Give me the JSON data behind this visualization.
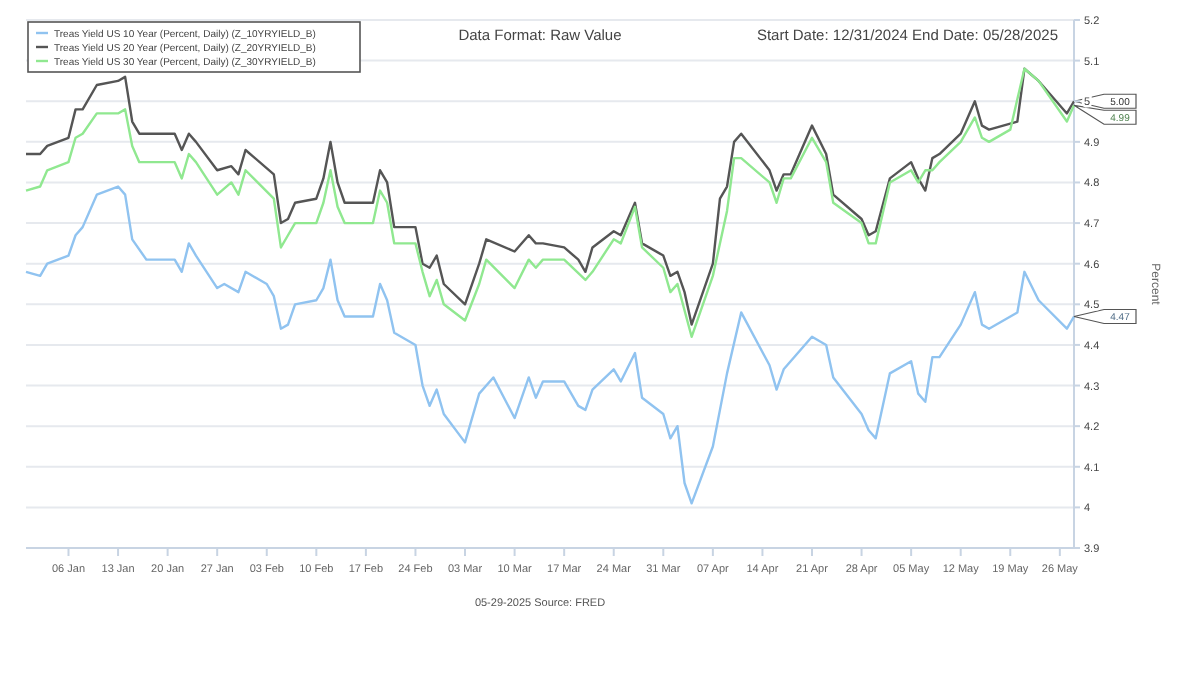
{
  "chart_data": {
    "type": "line",
    "title": "Data Format: Raw Value",
    "subtitle": "Start Date: 12/31/2024 End Date: 05/28/2025",
    "ylabel": "Percent",
    "annotations": [
      "05-29-2025 Source: FRED",
      {
        "text": "5.00",
        "x": "2025-05-28",
        "y": 5.0
      },
      {
        "text": "4.99",
        "x": "2025-05-28",
        "y": 4.99
      },
      {
        "text": "4.47",
        "x": "2025-05-28",
        "y": 4.47
      }
    ],
    "xlim": [
      "2024-12-31",
      "2025-05-28"
    ],
    "xticks": [
      {
        "value": "2025-01-06",
        "label": "06 Jan"
      },
      {
        "value": "2025-01-13",
        "label": "13 Jan"
      },
      {
        "value": "2025-01-20",
        "label": "20 Jan"
      },
      {
        "value": "2025-01-27",
        "label": "27 Jan"
      },
      {
        "value": "2025-02-03",
        "label": "03 Feb"
      },
      {
        "value": "2025-02-10",
        "label": "10 Feb"
      },
      {
        "value": "2025-02-17",
        "label": "17 Feb"
      },
      {
        "value": "2025-02-24",
        "label": "24 Feb"
      },
      {
        "value": "2025-03-03",
        "label": "03 Mar"
      },
      {
        "value": "2025-03-10",
        "label": "10 Mar"
      },
      {
        "value": "2025-03-17",
        "label": "17 Mar"
      },
      {
        "value": "2025-03-24",
        "label": "24 Mar"
      },
      {
        "value": "2025-03-31",
        "label": "31 Mar"
      },
      {
        "value": "2025-04-07",
        "label": "07 Apr"
      },
      {
        "value": "2025-04-14",
        "label": "14 Apr"
      },
      {
        "value": "2025-04-21",
        "label": "21 Apr"
      },
      {
        "value": "2025-04-28",
        "label": "28 Apr"
      },
      {
        "value": "2025-05-05",
        "label": "05 May"
      },
      {
        "value": "2025-05-12",
        "label": "12 May"
      },
      {
        "value": "2025-05-19",
        "label": "19 May"
      },
      {
        "value": "2025-05-26",
        "label": "26 May"
      }
    ],
    "ylim": [
      3.9,
      5.2
    ],
    "yticks": [
      3.9,
      {
        "value": 4.0,
        "label": "4"
      },
      4.1,
      4.2,
      4.3,
      4.4,
      4.5,
      4.6,
      4.7,
      4.8,
      4.9,
      {
        "value": 5.0,
        "label": "5"
      },
      5.1,
      5.2
    ],
    "grid": "y",
    "legend": "top left",
    "marker": "none",
    "line_style": "solid",
    "series": [
      {
        "name": "Treas Yield US 10 Year (Percent, Daily) (Z_10YRYIELD_B)",
        "color": "#90c3f0",
        "x": [
          "2024-12-31",
          "2025-01-02",
          "2025-01-03",
          "2025-01-06",
          "2025-01-07",
          "2025-01-08",
          "2025-01-10",
          "2025-01-13",
          "2025-01-14",
          "2025-01-15",
          "2025-01-17",
          "2025-01-21",
          "2025-01-22",
          "2025-01-23",
          "2025-01-24",
          "2025-01-27",
          "2025-01-28",
          "2025-01-30",
          "2025-01-31",
          "2025-02-03",
          "2025-02-04",
          "2025-02-05",
          "2025-02-06",
          "2025-02-07",
          "2025-02-10",
          "2025-02-11",
          "2025-02-12",
          "2025-02-13",
          "2025-02-14",
          "2025-02-18",
          "2025-02-19",
          "2025-02-20",
          "2025-02-21",
          "2025-02-24",
          "2025-02-25",
          "2025-02-26",
          "2025-02-27",
          "2025-02-28",
          "2025-03-03",
          "2025-03-05",
          "2025-03-07",
          "2025-03-10",
          "2025-03-12",
          "2025-03-13",
          "2025-03-14",
          "2025-03-17",
          "2025-03-19",
          "2025-03-20",
          "2025-03-21",
          "2025-03-24",
          "2025-03-25",
          "2025-03-27",
          "2025-03-28",
          "2025-03-31",
          "2025-04-01",
          "2025-04-02",
          "2025-04-03",
          "2025-04-04",
          "2025-04-07",
          "2025-04-09",
          "2025-04-11",
          "2025-04-15",
          "2025-04-16",
          "2025-04-17",
          "2025-04-21",
          "2025-04-23",
          "2025-04-24",
          "2025-04-28",
          "2025-04-29",
          "2025-04-30",
          "2025-05-02",
          "2025-05-05",
          "2025-05-06",
          "2025-05-07",
          "2025-05-08",
          "2025-05-09",
          "2025-05-12",
          "2025-05-14",
          "2025-05-15",
          "2025-05-16",
          "2025-05-20",
          "2025-05-21",
          "2025-05-23",
          "2025-05-27",
          "2025-05-28"
        ],
        "values": [
          4.58,
          4.57,
          4.6,
          4.62,
          4.67,
          4.69,
          4.77,
          4.79,
          4.77,
          4.66,
          4.61,
          4.61,
          4.58,
          4.65,
          4.62,
          4.54,
          4.55,
          4.53,
          4.58,
          4.55,
          4.52,
          4.44,
          4.45,
          4.5,
          4.51,
          4.54,
          4.61,
          4.51,
          4.47,
          4.47,
          4.55,
          4.51,
          4.43,
          4.4,
          4.3,
          4.25,
          4.29,
          4.23,
          4.16,
          4.28,
          4.32,
          4.22,
          4.32,
          4.27,
          4.31,
          4.31,
          4.25,
          4.24,
          4.29,
          4.34,
          4.31,
          4.38,
          4.27,
          4.23,
          4.17,
          4.2,
          4.06,
          4.01,
          4.15,
          4.33,
          4.48,
          4.35,
          4.29,
          4.34,
          4.42,
          4.4,
          4.32,
          4.23,
          4.19,
          4.17,
          4.33,
          4.36,
          4.28,
          4.26,
          4.37,
          4.37,
          4.45,
          4.53,
          4.45,
          4.44,
          4.48,
          4.58,
          4.51,
          4.44,
          4.47
        ]
      },
      {
        "name": "Treas Yield US 20 Year (Percent, Daily) (Z_20YRYIELD_B)",
        "color": "#555555",
        "x": [
          "2024-12-31",
          "2025-01-02",
          "2025-01-03",
          "2025-01-06",
          "2025-01-07",
          "2025-01-08",
          "2025-01-10",
          "2025-01-13",
          "2025-01-14",
          "2025-01-15",
          "2025-01-16",
          "2025-01-21",
          "2025-01-22",
          "2025-01-23",
          "2025-01-24",
          "2025-01-27",
          "2025-01-29",
          "2025-01-30",
          "2025-01-31",
          "2025-02-04",
          "2025-02-05",
          "2025-02-06",
          "2025-02-07",
          "2025-02-10",
          "2025-02-11",
          "2025-02-12",
          "2025-02-13",
          "2025-02-14",
          "2025-02-18",
          "2025-02-19",
          "2025-02-20",
          "2025-02-21",
          "2025-02-24",
          "2025-02-25",
          "2025-02-26",
          "2025-02-27",
          "2025-02-28",
          "2025-03-03",
          "2025-03-05",
          "2025-03-06",
          "2025-03-10",
          "2025-03-12",
          "2025-03-13",
          "2025-03-14",
          "2025-03-17",
          "2025-03-19",
          "2025-03-20",
          "2025-03-21",
          "2025-03-24",
          "2025-03-25",
          "2025-03-27",
          "2025-03-28",
          "2025-03-31",
          "2025-04-01",
          "2025-04-02",
          "2025-04-03",
          "2025-04-04",
          "2025-04-07",
          "2025-04-08",
          "2025-04-09",
          "2025-04-10",
          "2025-04-11",
          "2025-04-15",
          "2025-04-16",
          "2025-04-17",
          "2025-04-18",
          "2025-04-21",
          "2025-04-23",
          "2025-04-24",
          "2025-04-28",
          "2025-04-29",
          "2025-04-30",
          "2025-05-02",
          "2025-05-05",
          "2025-05-06",
          "2025-05-07",
          "2025-05-08",
          "2025-05-09",
          "2025-05-12",
          "2025-05-14",
          "2025-05-15",
          "2025-05-16",
          "2025-05-20",
          "2025-05-21",
          "2025-05-23",
          "2025-05-27",
          "2025-05-28"
        ],
        "values": [
          4.87,
          4.87,
          4.89,
          4.91,
          4.98,
          4.98,
          5.04,
          5.05,
          5.06,
          4.95,
          4.92,
          4.92,
          4.88,
          4.92,
          4.9,
          4.83,
          4.84,
          4.82,
          4.88,
          4.82,
          4.7,
          4.71,
          4.75,
          4.76,
          4.81,
          4.9,
          4.8,
          4.75,
          4.75,
          4.83,
          4.8,
          4.69,
          4.69,
          4.6,
          4.59,
          4.62,
          4.55,
          4.5,
          4.6,
          4.66,
          4.63,
          4.67,
          4.65,
          4.65,
          4.64,
          4.61,
          4.58,
          4.64,
          4.68,
          4.67,
          4.75,
          4.65,
          4.62,
          4.57,
          4.58,
          4.53,
          4.45,
          4.6,
          4.76,
          4.79,
          4.9,
          4.92,
          4.83,
          4.78,
          4.82,
          4.82,
          4.94,
          4.87,
          4.77,
          4.71,
          4.67,
          4.68,
          4.81,
          4.85,
          4.81,
          4.78,
          4.86,
          4.87,
          4.92,
          5.0,
          4.94,
          4.93,
          4.95,
          5.08,
          5.05,
          4.97,
          5.0
        ]
      },
      {
        "name": "Treas Yield US 30 Year (Percent, Daily) (Z_30YRYIELD_B)",
        "color": "#90e890",
        "x": [
          "2024-12-31",
          "2025-01-02",
          "2025-01-03",
          "2025-01-06",
          "2025-01-07",
          "2025-01-08",
          "2025-01-10",
          "2025-01-13",
          "2025-01-14",
          "2025-01-15",
          "2025-01-16",
          "2025-01-21",
          "2025-01-22",
          "2025-01-23",
          "2025-01-24",
          "2025-01-27",
          "2025-01-29",
          "2025-01-30",
          "2025-01-31",
          "2025-02-04",
          "2025-02-05",
          "2025-02-06",
          "2025-02-07",
          "2025-02-10",
          "2025-02-11",
          "2025-02-12",
          "2025-02-13",
          "2025-02-14",
          "2025-02-18",
          "2025-02-19",
          "2025-02-20",
          "2025-02-21",
          "2025-02-24",
          "2025-02-25",
          "2025-02-26",
          "2025-02-27",
          "2025-02-28",
          "2025-03-03",
          "2025-03-05",
          "2025-03-06",
          "2025-03-10",
          "2025-03-12",
          "2025-03-13",
          "2025-03-14",
          "2025-03-17",
          "2025-03-20",
          "2025-03-21",
          "2025-03-24",
          "2025-03-25",
          "2025-03-27",
          "2025-03-28",
          "2025-03-31",
          "2025-04-01",
          "2025-04-02",
          "2025-04-04",
          "2025-04-07",
          "2025-04-09",
          "2025-04-10",
          "2025-04-11",
          "2025-04-15",
          "2025-04-16",
          "2025-04-17",
          "2025-04-18",
          "2025-04-21",
          "2025-04-23",
          "2025-04-24",
          "2025-04-28",
          "2025-04-29",
          "2025-04-30",
          "2025-05-02",
          "2025-05-05",
          "2025-05-06",
          "2025-05-07",
          "2025-05-08",
          "2025-05-09",
          "2025-05-12",
          "2025-05-14",
          "2025-05-15",
          "2025-05-16",
          "2025-05-19",
          "2025-05-21",
          "2025-05-23",
          "2025-05-27",
          "2025-05-28"
        ],
        "values": [
          4.78,
          4.79,
          4.83,
          4.85,
          4.91,
          4.92,
          4.97,
          4.97,
          4.98,
          4.89,
          4.85,
          4.85,
          4.81,
          4.87,
          4.85,
          4.77,
          4.8,
          4.77,
          4.83,
          4.76,
          4.64,
          4.67,
          4.7,
          4.7,
          4.75,
          4.83,
          4.74,
          4.7,
          4.7,
          4.78,
          4.75,
          4.65,
          4.65,
          4.58,
          4.52,
          4.56,
          4.5,
          4.46,
          4.55,
          4.61,
          4.54,
          4.61,
          4.59,
          4.61,
          4.61,
          4.56,
          4.58,
          4.66,
          4.65,
          4.74,
          4.64,
          4.59,
          4.53,
          4.55,
          4.42,
          4.57,
          4.73,
          4.86,
          4.86,
          4.8,
          4.75,
          4.81,
          4.81,
          4.91,
          4.85,
          4.75,
          4.7,
          4.65,
          4.65,
          4.8,
          4.83,
          4.8,
          4.83,
          4.83,
          4.85,
          4.9,
          4.96,
          4.91,
          4.9,
          4.93,
          5.08,
          5.05,
          4.95,
          4.99
        ]
      }
    ]
  }
}
